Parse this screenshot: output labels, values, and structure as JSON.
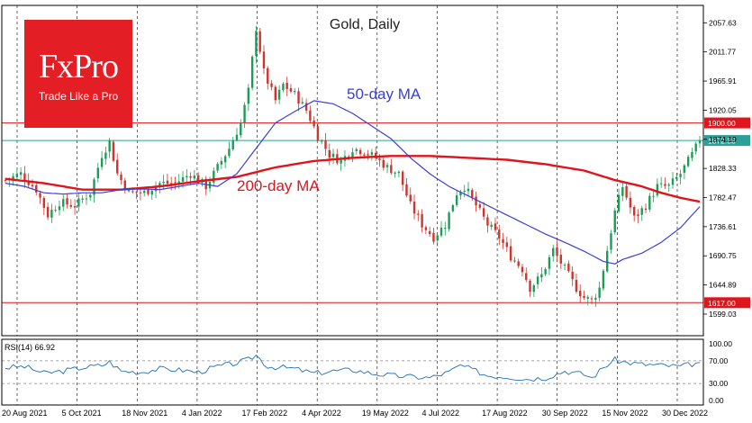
{
  "logo": {
    "brand": "FxPro",
    "tagline": "Trade Like a Pro"
  },
  "colors": {
    "candle_up": "#1a9e56",
    "candle_down": "#d0342c",
    "ma50": "#3a3fd8",
    "ma200": "#e0141b",
    "level_line": "#e0141b",
    "current_line": "#2aa198",
    "rsi_line": "#1e6fb5",
    "grid": "#000000"
  },
  "chart_data": [
    {
      "type": "candlestick",
      "title": "Gold, Daily",
      "ylim": [
        1565,
        2085
      ],
      "y_ticks": [
        2057.63,
        2011.77,
        1965.91,
        1920.05,
        1874.19,
        1828.33,
        1782.47,
        1736.61,
        1690.75,
        1644.89,
        1599.03
      ],
      "x_tick_labels": [
        "20 Aug 2021",
        "5 Oct 2021",
        "18 Nov 2021",
        "4 Jan 2022",
        "17 Feb 2022",
        "4 Apr 2022",
        "19 May 2022",
        "4 Jul 2022",
        "17 Aug 2022",
        "30 Sep 2022",
        "15 Nov 2022",
        "30 Dec 2022"
      ],
      "close_anchors": [
        [
          0,
          1810
        ],
        [
          4,
          1820
        ],
        [
          8,
          1795
        ],
        [
          11,
          1755
        ],
        [
          14,
          1775
        ],
        [
          18,
          1770
        ],
        [
          22,
          1790
        ],
        [
          25,
          1850
        ],
        [
          27,
          1870
        ],
        [
          29,
          1820
        ],
        [
          32,
          1790
        ],
        [
          36,
          1790
        ],
        [
          40,
          1805
        ],
        [
          44,
          1805
        ],
        [
          48,
          1820
        ],
        [
          52,
          1800
        ],
        [
          55,
          1830
        ],
        [
          58,
          1860
        ],
        [
          61,
          1900
        ],
        [
          63,
          1950
        ],
        [
          65,
          2050
        ],
        [
          67,
          1980
        ],
        [
          70,
          1935
        ],
        [
          72,
          1960
        ],
        [
          75,
          1945
        ],
        [
          78,
          1920
        ],
        [
          81,
          1880
        ],
        [
          84,
          1850
        ],
        [
          87,
          1840
        ],
        [
          90,
          1860
        ],
        [
          93,
          1855
        ],
        [
          96,
          1845
        ],
        [
          99,
          1830
        ],
        [
          102,
          1820
        ],
        [
          105,
          1770
        ],
        [
          108,
          1740
        ],
        [
          111,
          1720
        ],
        [
          114,
          1740
        ],
        [
          117,
          1790
        ],
        [
          119,
          1800
        ],
        [
          122,
          1770
        ],
        [
          125,
          1740
        ],
        [
          128,
          1720
        ],
        [
          131,
          1690
        ],
        [
          134,
          1670
        ],
        [
          136,
          1640
        ],
        [
          139,
          1660
        ],
        [
          142,
          1700
        ],
        [
          145,
          1670
        ],
        [
          148,
          1640
        ],
        [
          150,
          1625
        ],
        [
          152,
          1620
        ],
        [
          154,
          1640
        ],
        [
          156,
          1700
        ],
        [
          158,
          1760
        ],
        [
          160,
          1800
        ],
        [
          163,
          1750
        ],
        [
          166,
          1770
        ],
        [
          169,
          1800
        ],
        [
          172,
          1800
        ],
        [
          175,
          1820
        ],
        [
          178,
          1850
        ],
        [
          180,
          1872.33
        ]
      ],
      "ma50_anchors": [
        [
          0,
          1805
        ],
        [
          5,
          1800
        ],
        [
          10,
          1790
        ],
        [
          15,
          1788
        ],
        [
          20,
          1790
        ],
        [
          25,
          1790
        ],
        [
          30,
          1795
        ],
        [
          35,
          1796
        ],
        [
          40,
          1795
        ],
        [
          45,
          1800
        ],
        [
          50,
          1805
        ],
        [
          55,
          1800
        ],
        [
          60,
          1820
        ],
        [
          65,
          1860
        ],
        [
          70,
          1900
        ],
        [
          75,
          1918
        ],
        [
          80,
          1935
        ],
        [
          85,
          1930
        ],
        [
          90,
          1915
        ],
        [
          95,
          1895
        ],
        [
          100,
          1875
        ],
        [
          105,
          1845
        ],
        [
          110,
          1820
        ],
        [
          115,
          1800
        ],
        [
          120,
          1785
        ],
        [
          125,
          1770
        ],
        [
          130,
          1755
        ],
        [
          135,
          1740
        ],
        [
          140,
          1725
        ],
        [
          145,
          1712
        ],
        [
          150,
          1698
        ],
        [
          155,
          1682
        ],
        [
          158,
          1678
        ],
        [
          160,
          1685
        ],
        [
          165,
          1695
        ],
        [
          170,
          1712
        ],
        [
          175,
          1735
        ],
        [
          180,
          1768
        ]
      ],
      "ma200_anchors": [
        [
          0,
          1812
        ],
        [
          10,
          1805
        ],
        [
          20,
          1795
        ],
        [
          30,
          1795
        ],
        [
          40,
          1800
        ],
        [
          50,
          1808
        ],
        [
          60,
          1815
        ],
        [
          70,
          1830
        ],
        [
          80,
          1840
        ],
        [
          90,
          1845
        ],
        [
          100,
          1848
        ],
        [
          110,
          1848
        ],
        [
          120,
          1845
        ],
        [
          130,
          1842
        ],
        [
          140,
          1835
        ],
        [
          150,
          1825
        ],
        [
          158,
          1810
        ],
        [
          165,
          1800
        ],
        [
          170,
          1790
        ],
        [
          175,
          1782
        ],
        [
          180,
          1776
        ]
      ],
      "levels": [
        {
          "label": "1900.00",
          "value": 1900.0,
          "kind": "resistance"
        },
        {
          "label": "1872.33",
          "value": 1872.33,
          "kind": "current"
        },
        {
          "label": "1617.00",
          "value": 1617.0,
          "kind": "support"
        }
      ],
      "annotations": [
        {
          "text": "50-day MA",
          "series": "ma50"
        },
        {
          "text": "200-day MA",
          "series": "ma200"
        }
      ]
    },
    {
      "type": "line",
      "title": "RSI(14) 66.92",
      "ylim": [
        0,
        100
      ],
      "y_ticks": [
        "100.00",
        "70.00",
        "30.00",
        "0.00"
      ],
      "reference_lines": [
        70,
        30
      ],
      "rsi_anchors": [
        [
          0,
          58
        ],
        [
          5,
          60
        ],
        [
          10,
          48
        ],
        [
          15,
          52
        ],
        [
          20,
          58
        ],
        [
          25,
          62
        ],
        [
          27,
          68
        ],
        [
          30,
          52
        ],
        [
          35,
          50
        ],
        [
          40,
          56
        ],
        [
          45,
          54
        ],
        [
          50,
          50
        ],
        [
          55,
          60
        ],
        [
          60,
          66
        ],
        [
          63,
          72
        ],
        [
          65,
          80
        ],
        [
          68,
          60
        ],
        [
          72,
          58
        ],
        [
          75,
          56
        ],
        [
          80,
          48
        ],
        [
          85,
          52
        ],
        [
          90,
          54
        ],
        [
          95,
          48
        ],
        [
          100,
          44
        ],
        [
          105,
          42
        ],
        [
          110,
          40
        ],
        [
          115,
          50
        ],
        [
          118,
          62
        ],
        [
          122,
          52
        ],
        [
          125,
          44
        ],
        [
          130,
          42
        ],
        [
          135,
          38
        ],
        [
          140,
          40
        ],
        [
          145,
          52
        ],
        [
          150,
          46
        ],
        [
          152,
          40
        ],
        [
          155,
          58
        ],
        [
          158,
          72
        ],
        [
          160,
          68
        ],
        [
          165,
          64
        ],
        [
          170,
          62
        ],
        [
          175,
          60
        ],
        [
          180,
          66.92
        ]
      ]
    }
  ]
}
